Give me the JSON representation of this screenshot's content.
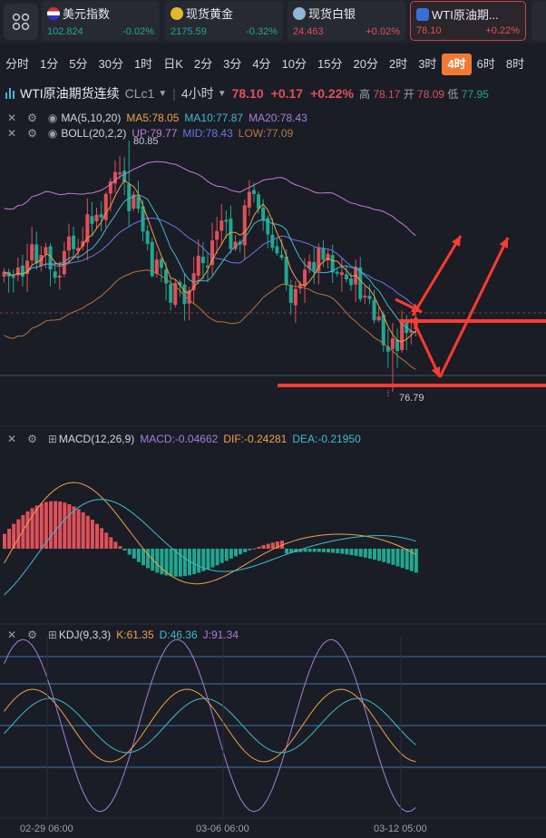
{
  "tickers": [
    {
      "name": "美元指数",
      "price": "102.824",
      "change": "-0.02%",
      "dir": "down",
      "icon": "us-flag-icon"
    },
    {
      "name": "现货黄金",
      "price": "2175.59",
      "change": "-0.32%",
      "dir": "down",
      "icon": "gold-icon"
    },
    {
      "name": "现货白银",
      "price": "24.463",
      "change": "+0.02%",
      "dir": "up",
      "icon": "silver-icon"
    },
    {
      "name": "WTI原油期...",
      "price": "78.10",
      "change": "+0.22%",
      "dir": "up",
      "icon": "chart-icon"
    }
  ],
  "timeframes": [
    "分时",
    "1分",
    "5分",
    "30分",
    "1时",
    "日K",
    "2分",
    "3分",
    "4分",
    "10分",
    "15分",
    "20分",
    "2时",
    "3时",
    "4时",
    "6时",
    "8时"
  ],
  "selected_timeframe": "4时",
  "instrument": {
    "name": "WTI原油期货连续",
    "code": "CLc1",
    "period": "4小时",
    "last": "78.10",
    "change": "+0.17",
    "change_pct": "+0.22%",
    "high_label": "高",
    "high": "78.17",
    "open_label": "开",
    "open": "78.09",
    "low_label": "低",
    "low": "77.95"
  },
  "ma": {
    "name": "MA(5,10,20)",
    "ma5": "MA5:78.05",
    "ma10": "MA10:77.87",
    "ma20": "MA20:78.43"
  },
  "boll": {
    "name": "BOLL(20,2,2)",
    "up": "UP:79.77",
    "mid": "MID:78.43",
    "low": "LOW:77.09"
  },
  "macd": {
    "name": "MACD(12,26,9)",
    "macd": "MACD:-0.04662",
    "dif": "DIF:-0.24281",
    "dea": "DEA:-0.21950"
  },
  "kdj": {
    "name": "KDJ(9,3,3)",
    "k": "K:61.35",
    "d": "D:46.36",
    "j": "J:91.34"
  },
  "price_marks": {
    "high": "80.85",
    "low": "76.79"
  },
  "time_axis": [
    "02-29 06:00",
    "03-06 06:00",
    "03-12 05:00"
  ],
  "colors": {
    "up": "#e0505a",
    "down": "#22a68f",
    "ma5": "#f0a04b",
    "ma10": "#3dbcd0",
    "ma20": "#a77fd8",
    "boll_up": "#c77bd6",
    "boll_mid": "#6d77e0",
    "boll_low": "#b8743f",
    "selected": "#f07a34",
    "annotation": "#ff3b30"
  }
}
